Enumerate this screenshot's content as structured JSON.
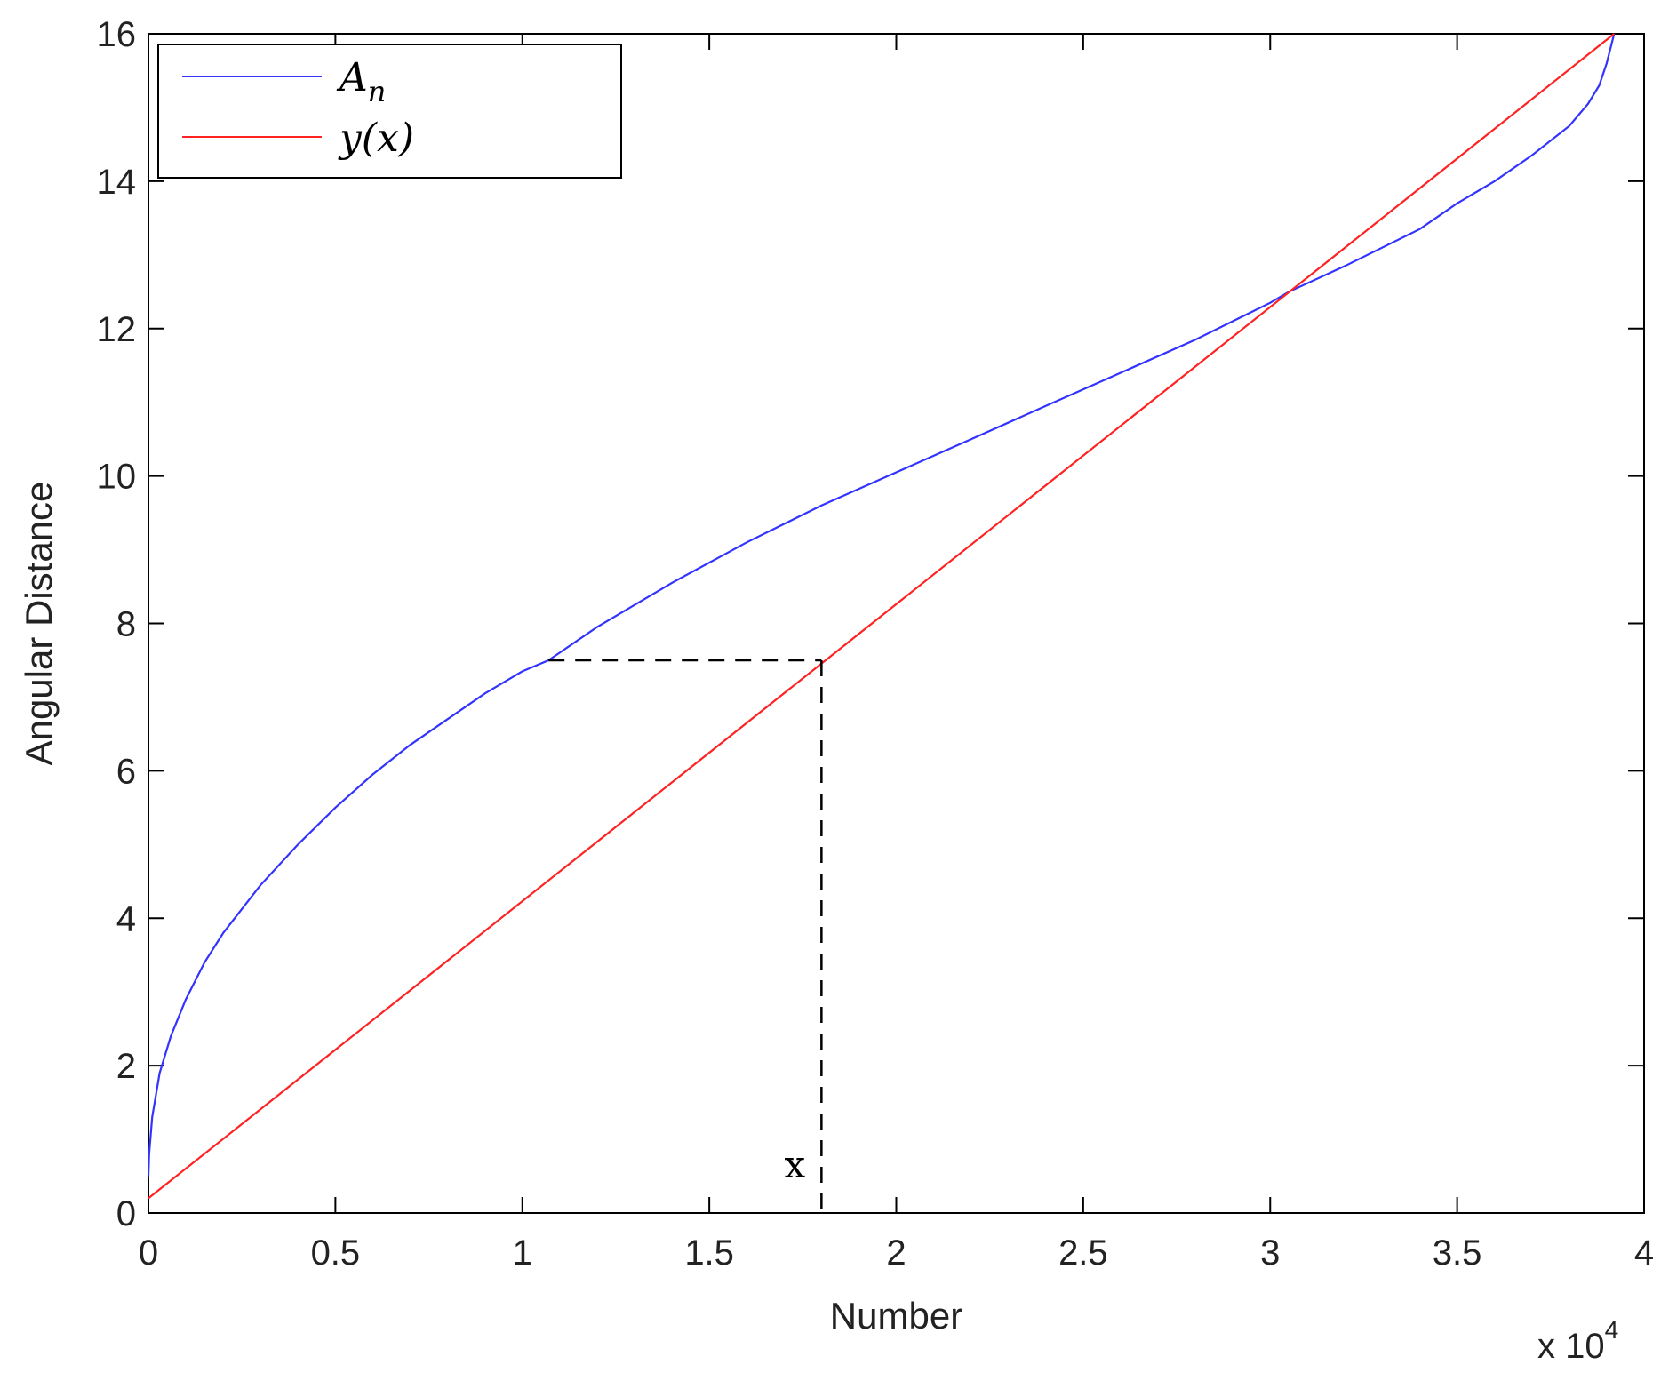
{
  "chart_data": {
    "type": "line",
    "xlabel": "Number",
    "ylabel": "Angular Distance",
    "x_multiplier": "x 10",
    "x_multiplier_exp": "4",
    "xlim": [
      0,
      4
    ],
    "ylim": [
      0,
      16
    ],
    "xticks": [
      "0",
      "0.5",
      "1",
      "1.5",
      "2",
      "2.5",
      "3",
      "3.5",
      "4"
    ],
    "yticks": [
      "0",
      "2",
      "4",
      "6",
      "8",
      "10",
      "12",
      "14",
      "16"
    ],
    "grid": false,
    "legend_position": "top-left",
    "series": [
      {
        "name": "A_n",
        "legend_main": "A",
        "legend_sub": "n",
        "color": "#3333ff",
        "x": [
          0.0,
          0.002,
          0.01,
          0.03,
          0.06,
          0.1,
          0.15,
          0.2,
          0.3,
          0.4,
          0.5,
          0.6,
          0.7,
          0.8,
          0.9,
          1.0,
          1.07,
          1.2,
          1.4,
          1.6,
          1.8,
          2.0,
          2.2,
          2.4,
          2.6,
          2.8,
          3.0,
          3.05,
          3.2,
          3.4,
          3.5,
          3.6,
          3.7,
          3.8,
          3.85,
          3.88,
          3.9,
          3.91,
          3.92
        ],
        "y": [
          0.5,
          0.8,
          1.3,
          1.9,
          2.4,
          2.9,
          3.4,
          3.8,
          4.45,
          5.0,
          5.5,
          5.95,
          6.35,
          6.7,
          7.05,
          7.35,
          7.5,
          7.95,
          8.55,
          9.1,
          9.6,
          10.05,
          10.5,
          10.95,
          11.4,
          11.85,
          12.35,
          12.5,
          12.85,
          13.35,
          13.7,
          14.0,
          14.35,
          14.75,
          15.05,
          15.3,
          15.6,
          15.8,
          16.0
        ]
      },
      {
        "name": "y(x)",
        "legend_text": "y(x)",
        "color": "#ff2222",
        "x": [
          0.0,
          3.92
        ],
        "y": [
          0.2,
          16.0
        ]
      }
    ],
    "annotations": [
      {
        "label": "x",
        "dashed_horizontal": {
          "x_from": 1.07,
          "x_to": 1.8,
          "y": 7.5
        },
        "dashed_vertical": {
          "x": 1.8,
          "y_from": 0,
          "y_to": 7.5
        }
      }
    ]
  }
}
